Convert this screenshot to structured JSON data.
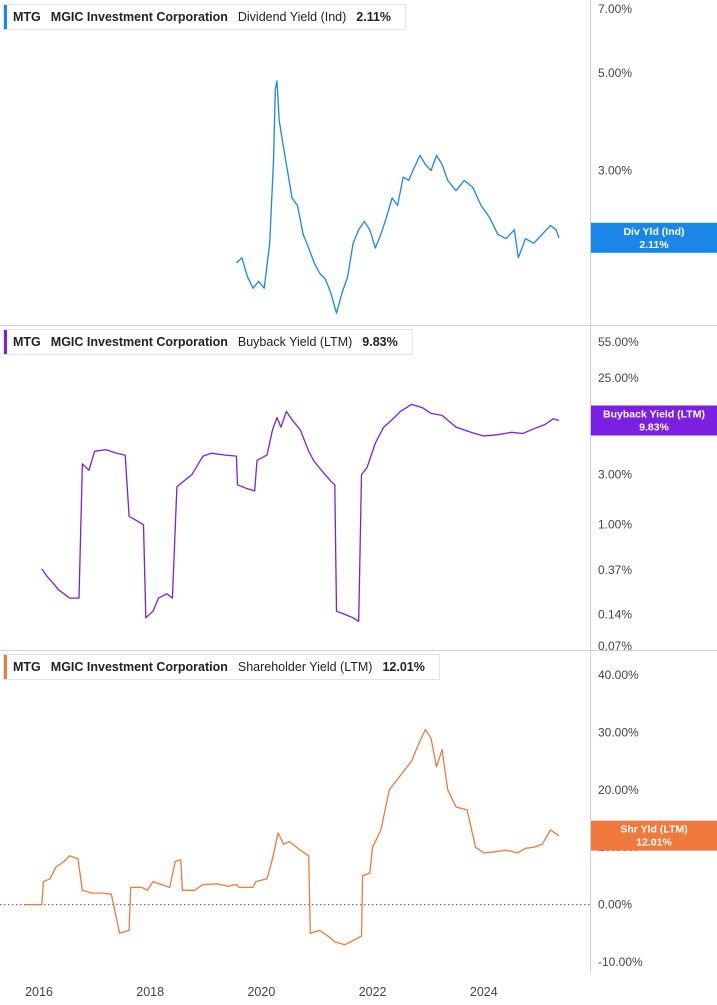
{
  "chart_data": [
    {
      "type": "line",
      "ticker": "MTG",
      "company": "MGIC Investment Corporation",
      "metric": "Dividend Yield (Ind)",
      "value_label": "2.11%",
      "tag_name": "Div Yld (Ind)",
      "color": "#1a86e8",
      "scale": "log",
      "ylim": [
        1.4,
        7.0
      ],
      "yticks": [
        7.0,
        5.0,
        3.0,
        2.0
      ],
      "ytick_labels": [
        "7.00%",
        "5.00%",
        "3.00%",
        "2.00%"
      ],
      "series": [
        {
          "values": [
            [
              2019.55,
              1.85
            ],
            [
              2019.65,
              1.9
            ],
            [
              2019.75,
              1.72
            ],
            [
              2019.85,
              1.62
            ],
            [
              2019.95,
              1.68
            ],
            [
              2020.05,
              1.62
            ],
            [
              2020.15,
              2.05
            ],
            [
              2020.22,
              3.2
            ],
            [
              2020.25,
              4.6
            ],
            [
              2020.28,
              4.8
            ],
            [
              2020.32,
              3.9
            ],
            [
              2020.38,
              3.5
            ],
            [
              2020.45,
              3.1
            ],
            [
              2020.55,
              2.6
            ],
            [
              2020.65,
              2.5
            ],
            [
              2020.75,
              2.15
            ],
            [
              2020.85,
              2.0
            ],
            [
              2020.95,
              1.85
            ],
            [
              2021.05,
              1.75
            ],
            [
              2021.15,
              1.7
            ],
            [
              2021.25,
              1.58
            ],
            [
              2021.35,
              1.42
            ],
            [
              2021.45,
              1.58
            ],
            [
              2021.55,
              1.72
            ],
            [
              2021.65,
              2.05
            ],
            [
              2021.75,
              2.2
            ],
            [
              2021.85,
              2.3
            ],
            [
              2021.95,
              2.2
            ],
            [
              2022.05,
              2.0
            ],
            [
              2022.15,
              2.15
            ],
            [
              2022.25,
              2.35
            ],
            [
              2022.35,
              2.6
            ],
            [
              2022.45,
              2.5
            ],
            [
              2022.55,
              2.9
            ],
            [
              2022.65,
              2.85
            ],
            [
              2022.75,
              3.05
            ],
            [
              2022.85,
              3.25
            ],
            [
              2022.95,
              3.1
            ],
            [
              2023.05,
              3.0
            ],
            [
              2023.15,
              3.25
            ],
            [
              2023.25,
              3.1
            ],
            [
              2023.35,
              2.85
            ],
            [
              2023.5,
              2.7
            ],
            [
              2023.65,
              2.85
            ],
            [
              2023.8,
              2.75
            ],
            [
              2023.95,
              2.5
            ],
            [
              2024.1,
              2.35
            ],
            [
              2024.25,
              2.15
            ],
            [
              2024.4,
              2.1
            ],
            [
              2024.55,
              2.2
            ],
            [
              2024.62,
              1.9
            ],
            [
              2024.75,
              2.1
            ],
            [
              2024.9,
              2.05
            ],
            [
              2025.05,
              2.15
            ],
            [
              2025.2,
              2.25
            ],
            [
              2025.3,
              2.2
            ],
            [
              2025.35,
              2.11
            ]
          ]
        }
      ]
    },
    {
      "type": "line",
      "ticker": "MTG",
      "company": "MGIC Investment Corporation",
      "metric": "Buyback Yield (LTM)",
      "value_label": "9.83%",
      "tag_name": "Buyback Yield (LTM)",
      "color": "#7b1fe0",
      "scale": "log",
      "ylim": [
        0.065,
        65.0
      ],
      "yticks": [
        55.0,
        25.0,
        3.0,
        1.0,
        0.37,
        0.14,
        0.07
      ],
      "ytick_labels": [
        "55.00%",
        "25.00%",
        "3.00%",
        "1.00%",
        "0.37%",
        "0.14%",
        "0.07%"
      ],
      "series": [
        {
          "values": [
            [
              2016.05,
              0.38
            ],
            [
              2016.15,
              0.32
            ],
            [
              2016.25,
              0.28
            ],
            [
              2016.35,
              0.24
            ],
            [
              2016.45,
              0.22
            ],
            [
              2016.55,
              0.2
            ],
            [
              2016.72,
              0.2
            ],
            [
              2016.78,
              3.8
            ],
            [
              2016.9,
              3.3
            ],
            [
              2017.0,
              5.0
            ],
            [
              2017.2,
              5.2
            ],
            [
              2017.4,
              4.8
            ],
            [
              2017.55,
              4.6
            ],
            [
              2017.62,
              1.2
            ],
            [
              2017.75,
              1.1
            ],
            [
              2017.88,
              1.0
            ],
            [
              2017.92,
              0.13
            ],
            [
              2018.05,
              0.15
            ],
            [
              2018.15,
              0.2
            ],
            [
              2018.3,
              0.22
            ],
            [
              2018.4,
              0.2
            ],
            [
              2018.48,
              2.3
            ],
            [
              2018.6,
              2.6
            ],
            [
              2018.75,
              3.0
            ],
            [
              2018.95,
              4.5
            ],
            [
              2019.1,
              4.8
            ],
            [
              2019.35,
              4.6
            ],
            [
              2019.55,
              4.5
            ],
            [
              2019.57,
              2.4
            ],
            [
              2019.75,
              2.2
            ],
            [
              2019.88,
              2.1
            ],
            [
              2019.92,
              4.1
            ],
            [
              2020.1,
              4.6
            ],
            [
              2020.2,
              8.0
            ],
            [
              2020.28,
              10.5
            ],
            [
              2020.35,
              8.5
            ],
            [
              2020.45,
              12.0
            ],
            [
              2020.55,
              10.0
            ],
            [
              2020.7,
              8.0
            ],
            [
              2020.85,
              5.0
            ],
            [
              2020.95,
              4.0
            ],
            [
              2021.1,
              3.2
            ],
            [
              2021.25,
              2.6
            ],
            [
              2021.32,
              2.4
            ],
            [
              2021.35,
              0.15
            ],
            [
              2021.5,
              0.14
            ],
            [
              2021.65,
              0.13
            ],
            [
              2021.75,
              0.12
            ],
            [
              2021.8,
              3.0
            ],
            [
              2021.9,
              3.5
            ],
            [
              2022.05,
              6.0
            ],
            [
              2022.2,
              8.5
            ],
            [
              2022.35,
              10.0
            ],
            [
              2022.5,
              12.0
            ],
            [
              2022.7,
              14.0
            ],
            [
              2022.9,
              13.0
            ],
            [
              2023.05,
              11.5
            ],
            [
              2023.25,
              11.0
            ],
            [
              2023.5,
              8.5
            ],
            [
              2023.8,
              7.5
            ],
            [
              2024.0,
              7.0
            ],
            [
              2024.25,
              7.2
            ],
            [
              2024.5,
              7.6
            ],
            [
              2024.7,
              7.4
            ],
            [
              2024.9,
              8.2
            ],
            [
              2025.1,
              9.0
            ],
            [
              2025.25,
              10.2
            ],
            [
              2025.35,
              9.83
            ]
          ]
        }
      ]
    },
    {
      "type": "line",
      "ticker": "MTG",
      "company": "MGIC Investment Corporation",
      "metric": "Shareholder Yield (LTM)",
      "value_label": "12.01%",
      "tag_name": "Shr Yld (LTM)",
      "color": "#f07a3d",
      "scale": "linear",
      "ylim": [
        -12.0,
        42.0
      ],
      "yticks": [
        40.0,
        30.0,
        20.0,
        10.0,
        0.0,
        -10.0
      ],
      "ytick_labels": [
        "40.00%",
        "30.00%",
        "20.00%",
        "10.00%",
        "0.00%",
        "-10.00%"
      ],
      "zero_line": true,
      "series": [
        {
          "values": [
            [
              2015.75,
              0.0
            ],
            [
              2016.05,
              0.0
            ],
            [
              2016.08,
              4.0
            ],
            [
              2016.2,
              4.5
            ],
            [
              2016.3,
              6.5
            ],
            [
              2016.45,
              7.5
            ],
            [
              2016.55,
              8.5
            ],
            [
              2016.7,
              8.0
            ],
            [
              2016.78,
              2.5
            ],
            [
              2016.95,
              2.0
            ],
            [
              2017.15,
              2.0
            ],
            [
              2017.3,
              1.8
            ],
            [
              2017.45,
              -5.0
            ],
            [
              2017.62,
              -4.5
            ],
            [
              2017.65,
              3.0
            ],
            [
              2017.85,
              3.0
            ],
            [
              2017.95,
              2.5
            ],
            [
              2018.05,
              4.0
            ],
            [
              2018.2,
              3.5
            ],
            [
              2018.35,
              3.0
            ],
            [
              2018.45,
              7.5
            ],
            [
              2018.55,
              7.8
            ],
            [
              2018.58,
              2.5
            ],
            [
              2018.8,
              2.5
            ],
            [
              2018.95,
              3.5
            ],
            [
              2019.2,
              3.6
            ],
            [
              2019.4,
              3.2
            ],
            [
              2019.55,
              3.5
            ],
            [
              2019.6,
              3.0
            ],
            [
              2019.85,
              3.0
            ],
            [
              2019.9,
              4.0
            ],
            [
              2020.1,
              4.5
            ],
            [
              2020.2,
              8.0
            ],
            [
              2020.3,
              12.5
            ],
            [
              2020.4,
              10.5
            ],
            [
              2020.5,
              11.0
            ],
            [
              2020.7,
              9.5
            ],
            [
              2020.85,
              8.5
            ],
            [
              2020.88,
              -5.0
            ],
            [
              2021.05,
              -4.5
            ],
            [
              2021.2,
              -5.5
            ],
            [
              2021.32,
              -6.5
            ],
            [
              2021.5,
              -7.0
            ],
            [
              2021.7,
              -6.0
            ],
            [
              2021.8,
              -5.5
            ],
            [
              2021.82,
              5.0
            ],
            [
              2021.95,
              5.5
            ],
            [
              2022.0,
              10.0
            ],
            [
              2022.15,
              13.0
            ],
            [
              2022.3,
              20.0
            ],
            [
              2022.5,
              22.5
            ],
            [
              2022.7,
              25.0
            ],
            [
              2022.85,
              28.5
            ],
            [
              2022.95,
              30.5
            ],
            [
              2023.05,
              29.0
            ],
            [
              2023.15,
              24.0
            ],
            [
              2023.25,
              27.0
            ],
            [
              2023.35,
              20.0
            ],
            [
              2023.5,
              17.0
            ],
            [
              2023.7,
              16.5
            ],
            [
              2023.85,
              10.0
            ],
            [
              2024.0,
              9.0
            ],
            [
              2024.2,
              9.2
            ],
            [
              2024.4,
              9.5
            ],
            [
              2024.6,
              9.0
            ],
            [
              2024.75,
              9.8
            ],
            [
              2024.9,
              10.0
            ],
            [
              2025.05,
              10.5
            ],
            [
              2025.2,
              13.0
            ],
            [
              2025.35,
              12.01
            ]
          ]
        }
      ]
    }
  ],
  "xaxis": {
    "ticks": [
      2016,
      2018,
      2020,
      2022,
      2024
    ],
    "labels": [
      "2016",
      "2018",
      "2020",
      "2022",
      "2024"
    ]
  }
}
